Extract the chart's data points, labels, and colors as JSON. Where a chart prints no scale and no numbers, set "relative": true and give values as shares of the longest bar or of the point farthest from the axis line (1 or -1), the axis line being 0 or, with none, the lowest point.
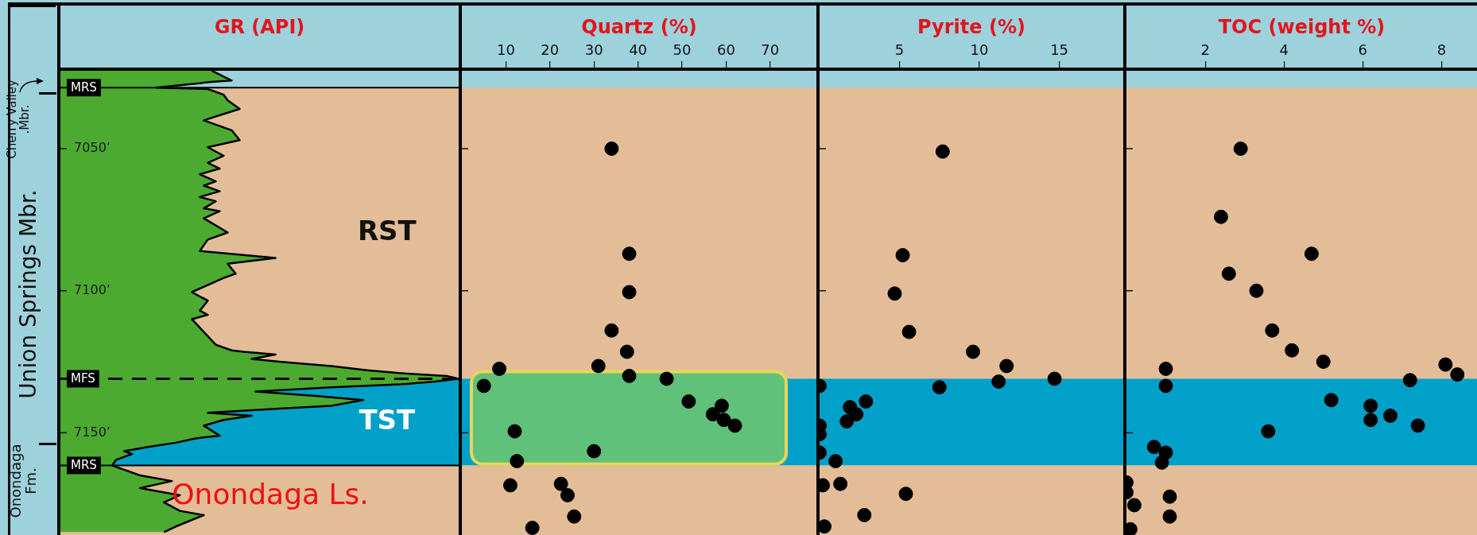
{
  "chart_data": [
    {
      "type": "area",
      "title": "GR (API)",
      "orientation": "horizontal",
      "relative": true,
      "tick_labels": "y",
      "x": [
        7022.5,
        7026,
        7026.5,
        7028.5,
        7029,
        7031,
        7033,
        7036,
        7040,
        7043.5,
        7047,
        7049.5,
        7052.5,
        7055,
        7057,
        7059,
        7061.5,
        7063,
        7065,
        7067,
        7068.5,
        7071,
        7072,
        7074.5,
        7079.5,
        7082,
        7086,
        7088.5,
        7090.5,
        7094,
        7095.5,
        7100.5,
        7103.5,
        7107,
        7108.5,
        7110,
        7113,
        7116,
        7119,
        7121,
        7121.5,
        7122.5,
        7124,
        7125,
        7126.5,
        7128,
        7129,
        7130,
        7131,
        7132,
        7133,
        7134,
        7135.5,
        7137,
        7138.5,
        7140.5,
        7141.5,
        7143,
        7144,
        7145.5,
        7147.5,
        7151,
        7152,
        7153.5,
        7155,
        7156.5,
        7157.5,
        7159.5,
        7161.5,
        7163,
        7165,
        7167,
        7169.5,
        7172,
        7174.5,
        7177.5,
        7179,
        7183,
        7185
      ],
      "values": [
        0.38,
        0.43,
        0.38,
        0.24,
        0.37,
        0.41,
        0.42,
        0.45,
        0.36,
        0.43,
        0.45,
        0.37,
        0.41,
        0.37,
        0.4,
        0.35,
        0.39,
        0.36,
        0.4,
        0.35,
        0.39,
        0.36,
        0.4,
        0.36,
        0.42,
        0.37,
        0.35,
        0.54,
        0.42,
        0.44,
        0.41,
        0.33,
        0.37,
        0.35,
        0.37,
        0.33,
        0.35,
        0.37,
        0.39,
        0.43,
        0.46,
        0.54,
        0.48,
        0.55,
        0.68,
        0.77,
        0.85,
        0.97,
        1,
        0.94,
        0.85,
        0.68,
        0.49,
        0.64,
        0.76,
        0.68,
        0.55,
        0.37,
        0.48,
        0.41,
        0.36,
        0.4,
        0.34,
        0.29,
        0.22,
        0.16,
        0.18,
        0.14,
        0.13,
        0.16,
        0.2,
        0.28,
        0.2,
        0.3,
        0.26,
        0.3,
        0.36,
        0.29,
        0.26
      ],
      "color": "#4caa30",
      "ylim": [
        7186,
        7022
      ],
      "yticks": [
        {
          "value": 7050,
          "label": "7050’"
        },
        {
          "value": 7100,
          "label": "7100’"
        },
        {
          "value": 7150,
          "label": "7150’"
        }
      ],
      "bands": [
        {
          "axis": "y",
          "from": 7028.5,
          "to": 7131,
          "label": "RST",
          "color": "#e3bc98"
        },
        {
          "axis": "y",
          "from": 7131,
          "to": 7161.5,
          "label": "TST",
          "color": "#00a0c8"
        },
        {
          "axis": "y",
          "from": 7161.5,
          "to": 7186,
          "color": "#e3bc98"
        }
      ],
      "ref_lines": [
        {
          "axis": "y",
          "value": 7028.5,
          "label": "MRS",
          "line_style": "solid"
        },
        {
          "axis": "y",
          "value": 7131,
          "label": "MFS",
          "line_style": "dashed"
        },
        {
          "axis": "y",
          "value": 7161.5,
          "label": "MRS",
          "line_style": "solid"
        }
      ],
      "annotations": [
        "Cherry Valley .Mbr.",
        "Union Springs Mbr.",
        "Onondaga Fm.",
        "Onondaga Ls."
      ]
    },
    {
      "type": "scatter",
      "title": "Quartz (%)",
      "tick_labels": "x",
      "marker": "circle",
      "x": [
        34,
        38,
        38,
        34,
        37.5,
        31,
        8.5,
        38,
        46.5,
        5,
        51.5,
        59,
        57,
        59.5,
        62,
        12,
        30,
        12.5,
        11,
        22.5,
        24,
        25.5,
        16
      ],
      "values": [
        7050,
        7087,
        7100.5,
        7114,
        7121.5,
        7126.5,
        7127.5,
        7130,
        7131,
        7133.5,
        7139,
        7140.5,
        7143.5,
        7145.5,
        7147.5,
        7149.5,
        7156.5,
        7160,
        7168.5,
        7168,
        7172,
        7179.5,
        7183.5
      ],
      "color": "#000000",
      "xlim": [
        0,
        80.5
      ],
      "xticks": [
        10,
        20,
        30,
        40,
        50,
        60,
        70
      ],
      "ylim": [
        7186,
        7022
      ],
      "yticks": [
        {
          "value": 7050,
          "label": null
        },
        {
          "value": 7100,
          "label": null
        },
        {
          "value": 7150,
          "label": null
        }
      ],
      "bands": [
        {
          "axis": "y",
          "from": 7028.5,
          "to": 7131,
          "color": "#e3bc98"
        },
        {
          "axis": "y",
          "from": 7131,
          "to": 7161.5,
          "color": "#00a0c8"
        },
        {
          "axis": "y",
          "from": 7161.5,
          "to": 7186,
          "color": "#e3bc98"
        },
        {
          "axis": "y",
          "from": 7128.5,
          "to": 7161,
          "color": "#60c17a"
        }
      ]
    },
    {
      "type": "scatter",
      "title": "Pyrite (%)",
      "tick_labels": "x",
      "marker": "circle",
      "x": [
        7.7,
        5.2,
        4.7,
        5.6,
        9.6,
        11.7,
        14.7,
        11.2,
        7.5,
        0,
        2.9,
        1.9,
        2.3,
        1.7,
        0,
        0,
        0,
        1,
        0.2,
        1.3,
        5.4,
        2.8,
        0.3
      ],
      "values": [
        7051,
        7087.5,
        7101,
        7114.5,
        7121.5,
        7126.5,
        7131,
        7132,
        7134,
        7133.5,
        7139,
        7141,
        7143.5,
        7146,
        7147.5,
        7150.5,
        7157,
        7160,
        7168.5,
        7168,
        7171.5,
        7179,
        7183
      ],
      "color": "#000000",
      "xlim": [
        0,
        19
      ],
      "xticks": [
        5,
        10,
        15
      ],
      "ylim": [
        7186,
        7022
      ],
      "yticks": [
        {
          "value": 7050,
          "label": null
        },
        {
          "value": 7100,
          "label": null
        },
        {
          "value": 7150,
          "label": null
        }
      ],
      "bands": [
        {
          "axis": "y",
          "from": 7028.5,
          "to": 7131,
          "color": "#e3bc98"
        },
        {
          "axis": "y",
          "from": 7131,
          "to": 7161.5,
          "color": "#00a0c8"
        },
        {
          "axis": "y",
          "from": 7161.5,
          "to": 7186,
          "color": "#e3bc98"
        }
      ]
    },
    {
      "type": "scatter",
      "title": "TOC (weight %)",
      "tick_labels": "x",
      "marker": "circle",
      "x": [
        2.9,
        2.4,
        4.7,
        2.6,
        3.3,
        3.7,
        4.2,
        5,
        8.1,
        8.4,
        1,
        1,
        7.2,
        5.2,
        6.2,
        6.7,
        6.2,
        7.4,
        3.6,
        0.7,
        1,
        0.9,
        0,
        0,
        0.2,
        1.1,
        1.1,
        0.1
      ],
      "values": [
        7050,
        7074,
        7087,
        7094,
        7100,
        7114,
        7121,
        7125,
        7126,
        7129.5,
        7127.5,
        7133.5,
        7131.5,
        7138.5,
        7140.5,
        7144,
        7145.5,
        7147.5,
        7149.5,
        7155,
        7157,
        7160.5,
        7167.5,
        7171,
        7175.5,
        7172.5,
        7179.5,
        7184
      ],
      "color": "#000000",
      "xlim": [
        0,
        8.9
      ],
      "xticks": [
        2,
        4,
        6,
        8
      ],
      "ylim": [
        7186,
        7022
      ],
      "yticks": [
        {
          "value": 7050,
          "label": null
        },
        {
          "value": 7100,
          "label": null
        },
        {
          "value": 7150,
          "label": null
        }
      ],
      "bands": [
        {
          "axis": "y",
          "from": 7028.5,
          "to": 7131,
          "color": "#e3bc98"
        },
        {
          "axis": "y",
          "from": 7131,
          "to": 7161.5,
          "color": "#00a0c8"
        },
        {
          "axis": "y",
          "from": 7161.5,
          "to": 7186,
          "color": "#e3bc98"
        }
      ]
    }
  ]
}
